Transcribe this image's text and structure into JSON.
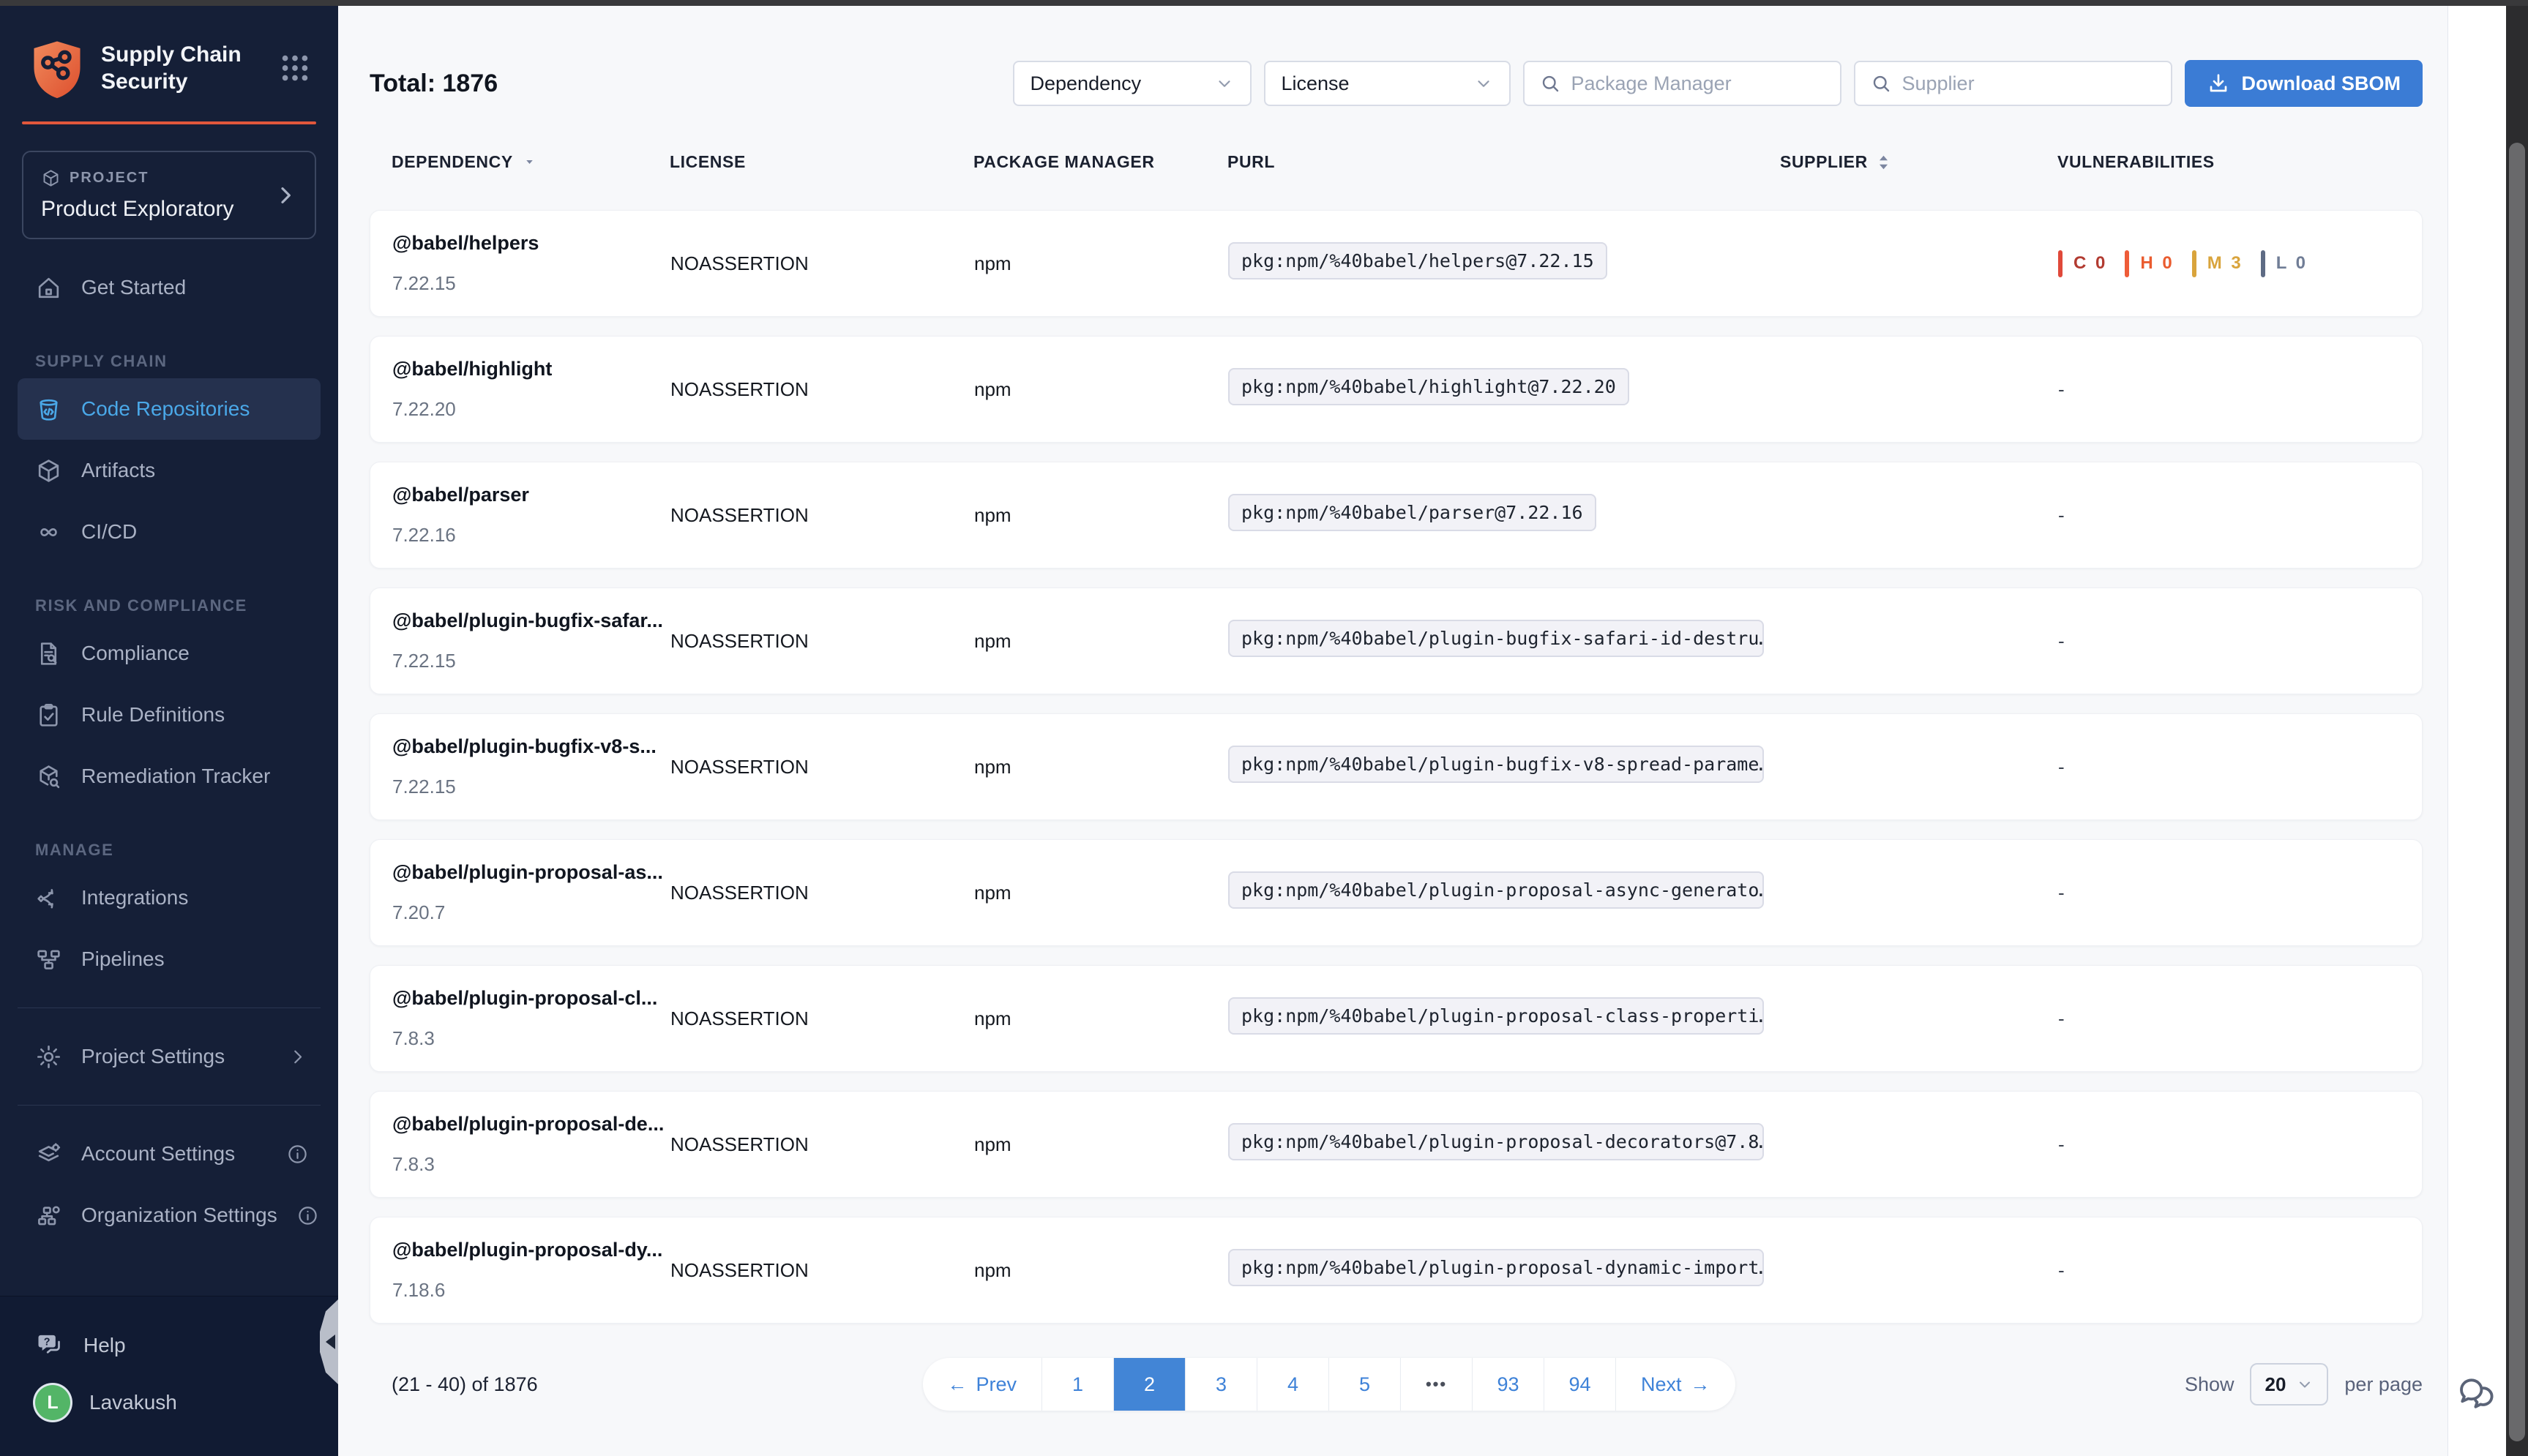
{
  "colors": {
    "accent_blue": "#3e82d8",
    "active_item_blue": "#4aa8e8",
    "brand_orange": "#e1573c",
    "severity": {
      "critical": {
        "bar": "#e0493a",
        "text": "#b23b31"
      },
      "high": {
        "bar": "#ee5c38",
        "text": "#ea5c2f"
      },
      "medium": {
        "bar": "#d9a43c",
        "text": "#d9a43c"
      },
      "low": {
        "bar": "#5e6b84",
        "text": "#707d96"
      }
    }
  },
  "sidebar": {
    "brand": {
      "line1": "Supply Chain",
      "line2": "Security"
    },
    "project": {
      "label": "PROJECT",
      "name": "Product Exploratory"
    },
    "sections": [
      {
        "label": "",
        "items": [
          {
            "id": "get-started",
            "label": "Get Started",
            "icon": "home",
            "active": false
          }
        ]
      },
      {
        "label": "SUPPLY CHAIN",
        "items": [
          {
            "id": "code-repositories",
            "label": "Code Repositories",
            "icon": "code-bucket",
            "active": true
          },
          {
            "id": "artifacts",
            "label": "Artifacts",
            "icon": "box",
            "active": false
          },
          {
            "id": "cicd",
            "label": "CI/CD",
            "icon": "infinity",
            "active": false
          }
        ]
      },
      {
        "label": "RISK AND COMPLIANCE",
        "items": [
          {
            "id": "compliance",
            "label": "Compliance",
            "icon": "doc-search",
            "active": false
          },
          {
            "id": "rule-definitions",
            "label": "Rule Definitions",
            "icon": "clipboard-check",
            "active": false
          },
          {
            "id": "remediation-tracker",
            "label": "Remediation Tracker",
            "icon": "box-tool",
            "active": false
          }
        ]
      },
      {
        "label": "MANAGE",
        "items": [
          {
            "id": "integrations",
            "label": "Integrations",
            "icon": "share-nodes",
            "active": false
          },
          {
            "id": "pipelines",
            "label": "Pipelines",
            "icon": "pipeline",
            "active": false
          }
        ]
      }
    ],
    "settings": [
      {
        "id": "project-settings",
        "label": "Project Settings",
        "icon": "gear",
        "chevron": true,
        "info": false,
        "divider_before": true
      },
      {
        "id": "account-settings",
        "label": "Account Settings",
        "icon": "layers-gear",
        "chevron": false,
        "info": true,
        "divider_before": true
      },
      {
        "id": "organization-settings",
        "label": "Organization Settings",
        "icon": "org-gear",
        "chevron": false,
        "info": true,
        "divider_before": false
      }
    ],
    "footer": {
      "help": "Help",
      "user": "Lavakush",
      "avatar_initial": "L"
    }
  },
  "toolbar": {
    "total": "Total: 1876",
    "dependency_filter": "Dependency",
    "license_filter": "License",
    "package_manager_placeholder": "Package Manager",
    "supplier_placeholder": "Supplier",
    "download_label": "Download SBOM"
  },
  "table": {
    "columns": [
      {
        "label": "DEPENDENCY",
        "sort": "down"
      },
      {
        "label": "LICENSE",
        "sort": ""
      },
      {
        "label": "PACKAGE MANAGER",
        "sort": ""
      },
      {
        "label": "PURL",
        "sort": ""
      },
      {
        "label": "SUPPLIER",
        "sort": "both"
      },
      {
        "label": "VULNERABILITIES",
        "sort": ""
      }
    ],
    "empty_vuln": "-",
    "rows": [
      {
        "name": "@babel/helpers",
        "version": "7.22.15",
        "license": "NOASSERTION",
        "pm": "npm",
        "purl": "pkg:npm/%40babel/helpers@7.22.15",
        "supplier": "",
        "vulns": [
          {
            "sev": "critical",
            "label": "C",
            "count": "0"
          },
          {
            "sev": "high",
            "label": "H",
            "count": "0"
          },
          {
            "sev": "medium",
            "label": "M",
            "count": "3"
          },
          {
            "sev": "low",
            "label": "L",
            "count": "0"
          }
        ]
      },
      {
        "name": "@babel/highlight",
        "version": "7.22.20",
        "license": "NOASSERTION",
        "pm": "npm",
        "purl": "pkg:npm/%40babel/highlight@7.22.20",
        "supplier": "",
        "vulns": null
      },
      {
        "name": "@babel/parser",
        "version": "7.22.16",
        "license": "NOASSERTION",
        "pm": "npm",
        "purl": "pkg:npm/%40babel/parser@7.22.16",
        "supplier": "",
        "vulns": null
      },
      {
        "name": "@babel/plugin-bugfix-safar...",
        "version": "7.22.15",
        "license": "NOASSERTION",
        "pm": "npm",
        "purl": "pkg:npm/%40babel/plugin-bugfix-safari-id-destru…",
        "supplier": "",
        "vulns": null
      },
      {
        "name": "@babel/plugin-bugfix-v8-s...",
        "version": "7.22.15",
        "license": "NOASSERTION",
        "pm": "npm",
        "purl": "pkg:npm/%40babel/plugin-bugfix-v8-spread-parame…",
        "supplier": "",
        "vulns": null
      },
      {
        "name": "@babel/plugin-proposal-as...",
        "version": "7.20.7",
        "license": "NOASSERTION",
        "pm": "npm",
        "purl": "pkg:npm/%40babel/plugin-proposal-async-generato…",
        "supplier": "",
        "vulns": null
      },
      {
        "name": "@babel/plugin-proposal-cl...",
        "version": "7.8.3",
        "license": "NOASSERTION",
        "pm": "npm",
        "purl": "pkg:npm/%40babel/plugin-proposal-class-properti…",
        "supplier": "",
        "vulns": null
      },
      {
        "name": "@babel/plugin-proposal-de...",
        "version": "7.8.3",
        "license": "NOASSERTION",
        "pm": "npm",
        "purl": "pkg:npm/%40babel/plugin-proposal-decorators@7.8…",
        "supplier": "",
        "vulns": null
      },
      {
        "name": "@babel/plugin-proposal-dy...",
        "version": "7.18.6",
        "license": "NOASSERTION",
        "pm": "npm",
        "purl": "pkg:npm/%40babel/plugin-proposal-dynamic-import…",
        "supplier": "",
        "vulns": null
      }
    ]
  },
  "pagination": {
    "range_text": "(21 - 40) of 1876",
    "prev_arrow": "←",
    "prev_label": "Prev",
    "next_label": "Next",
    "next_arrow": "→",
    "pages": [
      "1",
      "2",
      "3",
      "4",
      "5",
      "•••",
      "93",
      "94"
    ],
    "active_page": "2",
    "show_label": "Show",
    "page_size": "20",
    "per_page_label": "per page"
  }
}
